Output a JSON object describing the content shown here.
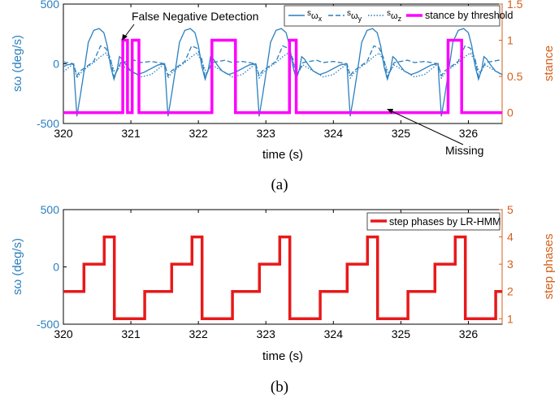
{
  "chart_data": [
    {
      "type": "line",
      "caption": "(a)",
      "xlabel": "time (s)",
      "ylabel_left": "sω (deg/s)",
      "ylabel_right": "stance",
      "xlim": [
        320,
        326.5
      ],
      "ylim_left": [
        -500,
        500
      ],
      "ylim_right": [
        -0.15,
        1.5
      ],
      "x_ticks": [
        "320",
        "321",
        "322",
        "323",
        "324",
        "325",
        "326"
      ],
      "yticks_left": [
        "500",
        "0",
        "-500"
      ],
      "yticks_right": [
        "1.5",
        "1",
        "0.5",
        "0"
      ],
      "legend": {
        "placement": "top-right",
        "entries": [
          {
            "base": "s",
            "sub": "ω",
            "subsub": "x",
            "style": "solid"
          },
          {
            "base": "s",
            "sub": "ω",
            "subsub": "y",
            "style": "dashed"
          },
          {
            "base": "s",
            "sub": "ω",
            "subsub": "z",
            "style": "dotted"
          },
          {
            "label": "stance by threshold",
            "style": "thick"
          }
        ]
      },
      "annotations": [
        {
          "text": "False Negative Detection",
          "x": 321.0,
          "y": 1.0
        },
        {
          "text": "Missing",
          "x": 324.75,
          "y": 0.0
        }
      ],
      "gyro_period": 1.35,
      "gyro_phase": 320.15,
      "series_x": {
        "t": [
          0,
          0.02,
          0.05,
          0.1,
          0.16,
          0.22,
          0.3,
          0.38,
          0.45,
          0.5,
          0.55,
          0.6,
          0.65,
          0.68,
          0.72,
          0.78,
          0.85,
          0.95,
          1.05,
          1.15,
          1.25,
          1.35
        ],
        "v": [
          0,
          -180,
          -440,
          -270,
          -50,
          180,
          280,
          295,
          260,
          150,
          -20,
          -130,
          -40,
          60,
          40,
          -10,
          -60,
          -90,
          -70,
          -40,
          -10,
          0
        ]
      },
      "series_y": {
        "t": [
          0,
          0.05,
          0.1,
          0.2,
          0.3,
          0.4,
          0.48,
          0.55,
          0.6,
          0.66,
          0.7,
          0.8,
          0.9,
          1.0,
          1.15,
          1.35
        ],
        "v": [
          0,
          -100,
          -60,
          -20,
          20,
          150,
          130,
          40,
          -110,
          -40,
          10,
          20,
          30,
          10,
          20,
          0
        ]
      },
      "series_z": {
        "t": [
          0,
          0.05,
          0.1,
          0.2,
          0.3,
          0.4,
          0.48,
          0.55,
          0.62,
          0.7,
          0.85,
          1.0,
          1.15,
          1.35
        ],
        "v": [
          0,
          -120,
          -80,
          -30,
          10,
          60,
          90,
          20,
          -80,
          -10,
          -60,
          -110,
          -90,
          0
        ]
      },
      "stance": {
        "x": [
          320,
          320.88,
          320.88,
          320.95,
          320.95,
          321.02,
          321.02,
          321.12,
          321.12,
          321.2,
          321.2,
          322.2,
          322.2,
          322.55,
          322.55,
          323.35,
          323.35,
          323.45,
          323.45,
          325.7,
          325.7,
          325.9,
          325.9,
          326.5
        ],
        "y": [
          0,
          0,
          1,
          1,
          0,
          0,
          1,
          1,
          0,
          0,
          0,
          0,
          1,
          1,
          0,
          0,
          1,
          1,
          0,
          0,
          1,
          1,
          0,
          0
        ]
      }
    },
    {
      "type": "line",
      "caption": "(b)",
      "xlabel": "time (s)",
      "ylabel_left": "sω (deg/s)",
      "ylabel_right": "step phases",
      "xlim": [
        320,
        326.5
      ],
      "ylim_left": [
        -500,
        500
      ],
      "ylim_right": [
        0.8,
        5
      ],
      "x_ticks": [
        "320",
        "321",
        "322",
        "323",
        "324",
        "325",
        "326"
      ],
      "yticks_left": [
        "500",
        "0",
        "-500"
      ],
      "yticks_right": [
        "5",
        "4",
        "3",
        "2",
        "1"
      ],
      "legend": {
        "placement": "top-right",
        "entries": [
          {
            "label": "step phases by LR-HMM",
            "style": "thick"
          }
        ]
      },
      "gyro_period": 1.3,
      "gyro_phase": 320.15,
      "step_period": 1.3,
      "step_start": 320.0,
      "step_pattern": {
        "t": [
          0,
          0.3,
          0.6,
          0.75,
          1.2,
          1.3
        ],
        "v": [
          2,
          3,
          4,
          1,
          2,
          2
        ]
      }
    }
  ],
  "colors": {
    "gyro": "#2a7fbf",
    "stance": "#ff00ff",
    "phases": "#e8191a",
    "right_axis": "#d35f1a",
    "axis": "#000000"
  }
}
